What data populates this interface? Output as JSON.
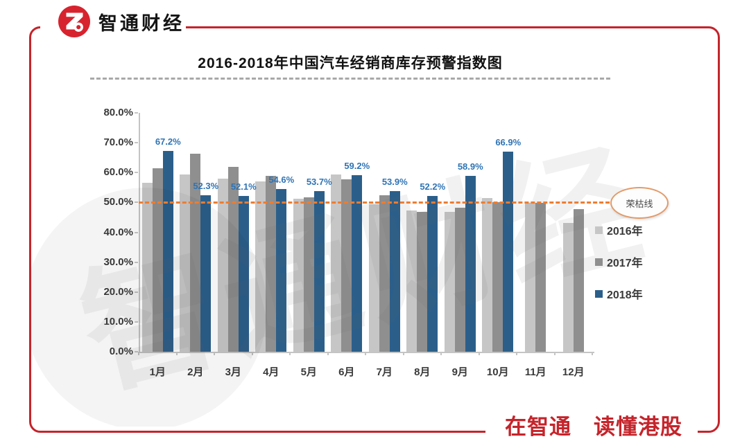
{
  "brand": {
    "name": "智通财经",
    "slogan": "在智通　读懂港股"
  },
  "chart_data": {
    "type": "bar",
    "title": "2016-2018年中国汽车经销商库存预警指数图",
    "categories": [
      "1月",
      "2月",
      "3月",
      "4月",
      "5月",
      "6月",
      "7月",
      "8月",
      "9月",
      "10月",
      "11月",
      "12月"
    ],
    "series": [
      {
        "name": "2016年",
        "color": "#c6c6c6",
        "values": [
          56.6,
          59.4,
          57.9,
          57.0,
          51.3,
          59.4,
          49.3,
          47.3,
          46.9,
          51.4,
          49.9,
          43.2
        ]
      },
      {
        "name": "2017年",
        "color": "#8f8f8f",
        "values": [
          61.5,
          66.4,
          61.8,
          58.9,
          51.7,
          57.7,
          52.4,
          46.9,
          48.3,
          50.1,
          49.8,
          47.8
        ]
      },
      {
        "name": "2018年",
        "color": "#2b5f8a",
        "values": [
          67.2,
          52.3,
          52.1,
          54.6,
          53.7,
          59.2,
          53.9,
          52.2,
          58.9,
          66.9,
          null,
          null
        ],
        "labels": [
          "67.2%",
          "52.3%",
          "52.1%",
          "54.6%",
          "53.7%",
          "59.2%",
          "53.9%",
          "52.2%",
          "58.9%",
          "66.9%",
          null,
          null
        ]
      }
    ],
    "xlabel": "",
    "ylabel": "",
    "ylim": [
      0,
      80
    ],
    "ytick_step": 10,
    "ytick_labels": [
      "0.0%",
      "10.0%",
      "20.0%",
      "30.0%",
      "40.0%",
      "50.0%",
      "60.0%",
      "70.0%",
      "80.0%"
    ],
    "grid": false,
    "legend_position": "right",
    "value_label_color": "#2e74b5",
    "reference_line": {
      "value": 50,
      "label": "荣枯线",
      "color": "#ed7d31"
    },
    "watermark": "智通财经"
  },
  "colors": {
    "frame": "#c5242b",
    "slogan": "#c5242b",
    "logo": "#d7232e",
    "bar_2016": "#c6c6c6",
    "bar_2017": "#8f8f8f",
    "bar_2018": "#2b5f8a",
    "reference": "#ed7d31"
  }
}
